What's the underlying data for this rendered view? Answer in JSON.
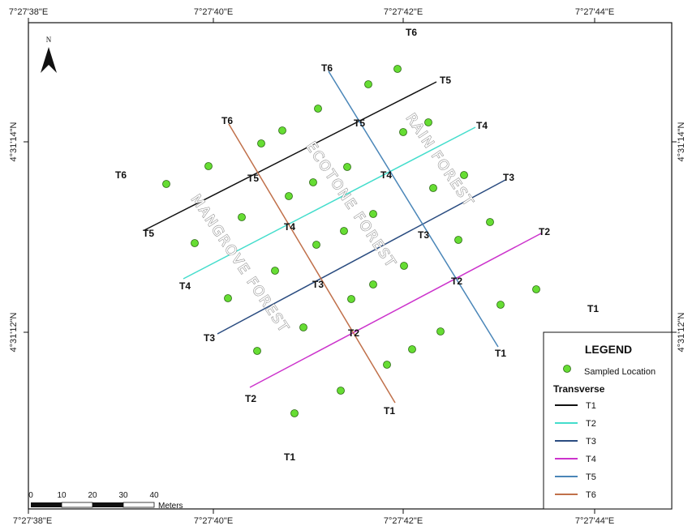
{
  "coordinates": {
    "top": [
      "7°27'38\"E",
      "7°27'40\"E",
      "7°27'42\"E",
      "7°27'44\"E"
    ],
    "bottom": [
      "7°27'38\"E",
      "7°27'40\"E",
      "7°27'42\"E",
      "7°27'44\"E"
    ],
    "left": [
      "4°31'14\"N",
      "4°31'12\"N"
    ],
    "right": [
      "4°31'14\"N",
      "4°31'12\"N"
    ]
  },
  "north_arrow": {
    "label": "N"
  },
  "zones": {
    "mangrove": "MANGROVE FOREST",
    "ecotone": "ECOTONE FOREST",
    "rain": "RAIN FOREST"
  },
  "legend": {
    "title": "LEGEND",
    "point_label": "Sampled Location",
    "point_color": "#66dd33",
    "transverse_title": "Transverse",
    "items": [
      {
        "label": "T1",
        "color": "#111111"
      },
      {
        "label": "T2",
        "color": "#44ddcc"
      },
      {
        "label": "T3",
        "color": "#2a4c80"
      },
      {
        "label": "T4",
        "color": "#cc33cc"
      },
      {
        "label": "T5",
        "color": "#4a86b8"
      },
      {
        "label": "T6",
        "color": "#c0704a"
      }
    ]
  },
  "scale_bar": {
    "ticks": [
      "0",
      "10",
      "20",
      "30",
      "40"
    ],
    "unit": "Meters"
  },
  "transect_labels": {
    "T1": "T1",
    "T2": "T2",
    "T3": "T3",
    "T4": "T4",
    "T5": "T5",
    "T6": "T6"
  }
}
